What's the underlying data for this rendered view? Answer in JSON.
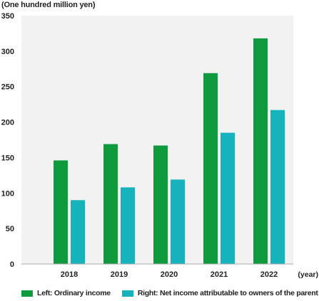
{
  "chart_data": {
    "type": "bar",
    "unit_label": "(One hundred million yen)",
    "xlabel": "(year)",
    "ylabel": "",
    "title": "",
    "categories": [
      "2018",
      "2019",
      "2020",
      "2021",
      "2022"
    ],
    "ylim": [
      0,
      350
    ],
    "yticks": [
      0,
      50,
      100,
      150,
      200,
      250,
      300,
      350
    ],
    "grid": false,
    "legend_position": "bottom",
    "series": [
      {
        "name": "Left: Ordinary income",
        "color": "#109a3e",
        "values": [
          146,
          169,
          167,
          269,
          318
        ]
      },
      {
        "name": "Right: Net income attributable to owners of the parent",
        "color": "#17b3bd",
        "values": [
          90,
          108,
          119,
          185,
          217
        ]
      }
    ]
  },
  "colors": {
    "plot_background": "#f2f2f2",
    "axis": "#aaaaaa"
  }
}
